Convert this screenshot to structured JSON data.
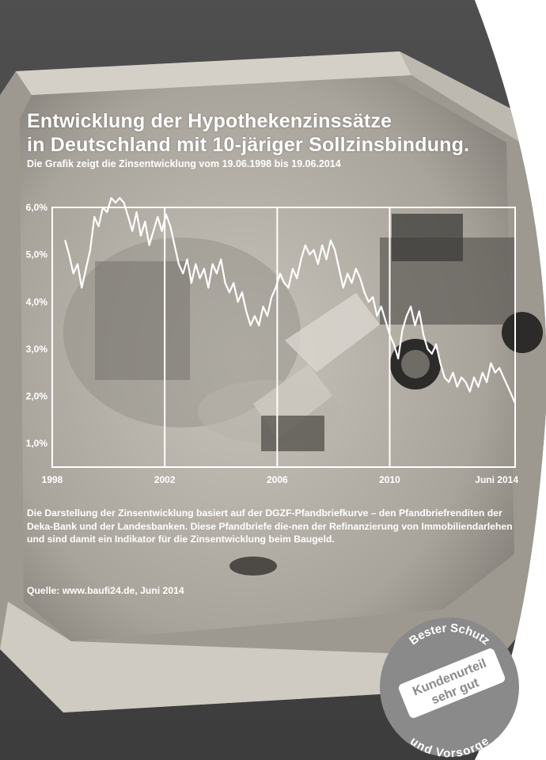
{
  "title_line1": "Entwicklung der Hypothekenzinssätze",
  "title_line2": "in Deutschland mit 10-järiger Sollzinsbindung.",
  "subtitle": "Die Grafik zeigt die Zinsentwicklung vom 19.06.1998 bis 19.06.2014",
  "description": "Die Darstellung der Zinsentwicklung basiert auf der DGZF-Pfandbriefkurve – den Pfandbriefrenditen der Deka-Bank und der Landesbanken. Diese Pfandbriefe die-nen der Refinanzierung von Immobiliendarlehen und sind damit ein Indikator für die Zinsentwicklung beim Baugeld.",
  "source": "Quelle: www.baufi24.de, Juni 2014",
  "badge": {
    "top_text": "Bester Schutz",
    "line1": "Kundenurteil",
    "line2": "sehr gut",
    "bottom_text": "und Vorsorge"
  },
  "colors": {
    "line": "#ffffff",
    "text": "#ffffff",
    "badge": "#8a8a8a"
  },
  "chart_data": {
    "type": "line",
    "title": "",
    "xlabel": "",
    "ylabel": "",
    "xlim": [
      1998.46,
      2014.46
    ],
    "ylim": [
      0.5,
      6.0
    ],
    "x_tick_labels": [
      {
        "x": 1998,
        "label": "1998"
      },
      {
        "x": 2002,
        "label": "2002"
      },
      {
        "x": 2006,
        "label": "2006"
      },
      {
        "x": 2010,
        "label": "2010"
      },
      {
        "x": 2014.46,
        "label": "Juni 2014"
      }
    ],
    "y_tick_labels": [
      {
        "y": 6.0,
        "label": "6,0%"
      },
      {
        "y": 5.0,
        "label": "5,0%"
      },
      {
        "y": 4.0,
        "label": "4,0%"
      },
      {
        "y": 3.0,
        "label": "3,0%"
      },
      {
        "y": 2.0,
        "label": "2,0%"
      },
      {
        "y": 1.0,
        "label": "1,0%"
      }
    ],
    "vertical_gridlines": [
      2002,
      2006,
      2010
    ],
    "grid": false,
    "series": [
      {
        "x": [
          1998.46,
          1998.6,
          1998.75,
          1998.9,
          1999.05,
          1999.2,
          1999.35,
          1999.5,
          1999.65,
          1999.8,
          1999.95,
          2000.1,
          2000.25,
          2000.4,
          2000.55,
          2000.7,
          2000.85,
          2001.0,
          2001.15,
          2001.3,
          2001.45,
          2001.6,
          2001.75,
          2001.9,
          2002.05,
          2002.2,
          2002.35,
          2002.5,
          2002.65,
          2002.8,
          2002.95,
          2003.1,
          2003.25,
          2003.4,
          2003.55,
          2003.7,
          2003.85,
          2004.0,
          2004.15,
          2004.3,
          2004.45,
          2004.6,
          2004.75,
          2004.9,
          2005.05,
          2005.2,
          2005.35,
          2005.5,
          2005.65,
          2005.8,
          2005.95,
          2006.1,
          2006.25,
          2006.4,
          2006.55,
          2006.7,
          2006.85,
          2007.0,
          2007.15,
          2007.3,
          2007.45,
          2007.6,
          2007.75,
          2007.9,
          2008.05,
          2008.2,
          2008.35,
          2008.5,
          2008.65,
          2008.8,
          2008.95,
          2009.1,
          2009.25,
          2009.4,
          2009.55,
          2009.7,
          2009.85,
          2010.0,
          2010.15,
          2010.3,
          2010.45,
          2010.6,
          2010.75,
          2010.9,
          2011.05,
          2011.2,
          2011.35,
          2011.5,
          2011.65,
          2011.8,
          2011.95,
          2012.1,
          2012.25,
          2012.4,
          2012.55,
          2012.7,
          2012.85,
          2013.0,
          2013.15,
          2013.3,
          2013.45,
          2013.6,
          2013.75,
          2013.9,
          2014.05,
          2014.2,
          2014.35,
          2014.46
        ],
        "y": [
          5.3,
          5.0,
          4.6,
          4.8,
          4.3,
          4.7,
          5.1,
          5.8,
          5.6,
          6.0,
          5.9,
          6.2,
          6.1,
          6.2,
          6.1,
          5.8,
          5.5,
          5.9,
          5.4,
          5.7,
          5.2,
          5.5,
          5.8,
          5.5,
          5.85,
          5.6,
          5.2,
          4.8,
          4.6,
          4.9,
          4.4,
          4.8,
          4.5,
          4.7,
          4.3,
          4.8,
          4.6,
          4.9,
          4.4,
          4.2,
          4.4,
          4.0,
          4.2,
          3.8,
          3.5,
          3.7,
          3.5,
          3.9,
          3.7,
          4.1,
          4.3,
          4.6,
          4.4,
          4.3,
          4.7,
          4.5,
          4.9,
          5.2,
          5.0,
          5.1,
          4.8,
          5.2,
          4.9,
          5.3,
          5.1,
          4.7,
          4.3,
          4.6,
          4.4,
          4.7,
          4.5,
          4.2,
          4.0,
          4.1,
          3.7,
          3.9,
          3.6,
          3.3,
          3.1,
          2.8,
          3.4,
          3.7,
          3.9,
          3.5,
          3.8,
          3.3,
          3.0,
          2.9,
          3.1,
          2.7,
          2.4,
          2.3,
          2.5,
          2.2,
          2.4,
          2.3,
          2.1,
          2.4,
          2.2,
          2.5,
          2.3,
          2.7,
          2.5,
          2.6,
          2.4,
          2.2,
          2.0,
          1.85
        ]
      }
    ]
  }
}
